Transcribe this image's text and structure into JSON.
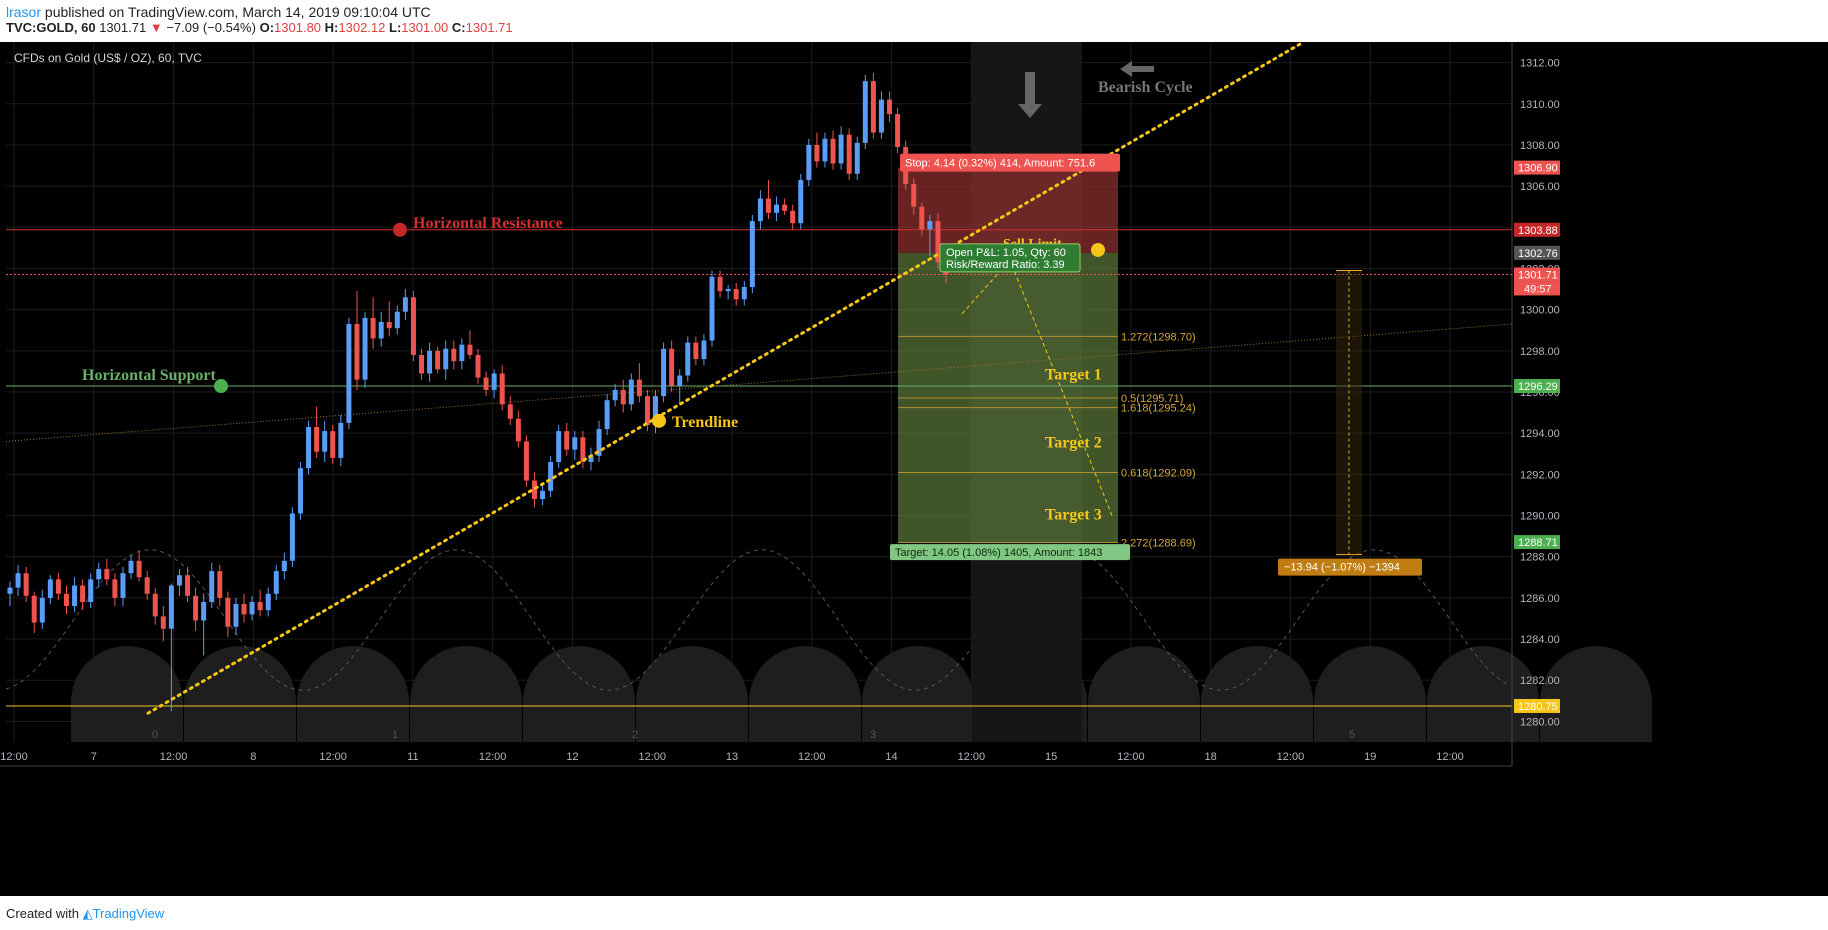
{
  "header": {
    "user": "lrasor",
    "published": " published on TradingView.com, March 14, 2019 09:10:04 UTC",
    "symbol": "TVC:GOLD, 60",
    "last": "1301.71",
    "change_arrow": "▼",
    "change": "−7.09 (−0.54%)",
    "o_label": "O:",
    "o": "1301.80",
    "h_label": "H:",
    "h": "1302.12",
    "l_label": "L:",
    "l": "1301.00",
    "c_label": "C:",
    "c": "1301.71"
  },
  "chart_title": "CFDs on Gold (US$ / OZ), 60, TVC",
  "footer": {
    "created": "Created with",
    "brand": "TradingView"
  },
  "colors": {
    "bg": "#000000",
    "up": "#5b9cf6",
    "down": "#ef5350",
    "resistance": "#d32f2f",
    "support": "#69b069",
    "trend": "#f5c518",
    "grid": "#1c1c1c",
    "axis_text": "#b2b5be"
  },
  "chart_data": {
    "type": "candlestick",
    "title": "CFDs on Gold (US$ / OZ), 60, TVC",
    "ylim": [
      1279,
      1313
    ],
    "y_ticks": [
      1280,
      1282,
      1284,
      1286,
      1288,
      1290,
      1292,
      1294,
      1296,
      1298,
      1300,
      1302,
      1304,
      1306,
      1308,
      1310,
      1312
    ],
    "x_ticks": [
      "12:00",
      "7",
      "12:00",
      "8",
      "12:00",
      "11",
      "12:00",
      "12",
      "12:00",
      "13",
      "12:00",
      "14",
      "12:00",
      "15",
      "12:00",
      "18",
      "12:00",
      "19",
      "12:00"
    ],
    "cycle_numbers": [
      "0",
      "1",
      "2",
      "3",
      "5",
      "5"
    ],
    "price_tags": [
      {
        "value": 1306.9,
        "label": "1306.90",
        "color": "#ef5350"
      },
      {
        "value": 1303.88,
        "label": "1303.88",
        "color": "#c62828"
      },
      {
        "value": 1302.76,
        "label": "1302.76",
        "color": "#555555"
      },
      {
        "value": 1301.71,
        "label": "1301.71",
        "color": "#ef5350"
      },
      {
        "value": 1296.29,
        "label": "1296.29",
        "color": "#4caf50"
      },
      {
        "value": 1288.71,
        "label": "1288.71",
        "color": "#4caf50"
      },
      {
        "value": 1280.75,
        "label": "1280.75",
        "color": "#f5c518"
      }
    ],
    "countdown": "49:57",
    "horizontal_lines": [
      {
        "value": 1303.88,
        "name": "Horizontal Resistance"
      },
      {
        "value": 1296.29,
        "name": "Horizontal Support"
      },
      {
        "value": 1280.75,
        "name": ""
      }
    ],
    "trendline_label": "Trendline",
    "fib_levels": [
      {
        "label": "1.272(1298.70)",
        "value": 1298.7
      },
      {
        "label": "0.5(1295.71)",
        "value": 1295.71
      },
      {
        "label": "1.618(1295.24)",
        "value": 1295.24
      },
      {
        "label": "0.618(1292.09)",
        "value": 1292.09
      },
      {
        "label": "2.272(1288.69)",
        "value": 1288.69
      }
    ],
    "targets": [
      "Target 1",
      "Target 2",
      "Target 3"
    ],
    "position": {
      "entry": 1302.76,
      "stop": 1306.9,
      "target": 1288.71,
      "stop_label": "Stop: 4.14 (0.32%) 414, Amount: 751.6",
      "target_label": "Target: 14.05 (1.08%) 1405, Amount: 1843",
      "pnl_label": "Open P&L: 1.05, Qty: 60",
      "rr_label": "Risk/Reward Ratio: 3.39",
      "sell_limit": "Sell Limit"
    },
    "bearish_cycle": "Bearish Cycle",
    "measure_label": "−13.94 (−1.07%) −1394",
    "candles": [
      [
        1286.2,
        1286.8,
        1285.6,
        1286.5
      ],
      [
        1286.5,
        1287.6,
        1286.1,
        1287.2
      ],
      [
        1287.2,
        1287.5,
        1285.8,
        1286.1
      ],
      [
        1286.1,
        1286.3,
        1284.3,
        1284.8
      ],
      [
        1284.8,
        1286.4,
        1284.5,
        1286.0
      ],
      [
        1286.0,
        1287.1,
        1285.7,
        1286.9
      ],
      [
        1286.9,
        1287.2,
        1285.9,
        1286.2
      ],
      [
        1286.2,
        1286.6,
        1285.2,
        1285.6
      ],
      [
        1285.6,
        1287.0,
        1285.3,
        1286.6
      ],
      [
        1286.6,
        1286.9,
        1285.4,
        1285.8
      ],
      [
        1285.8,
        1287.2,
        1285.5,
        1286.9
      ],
      [
        1286.9,
        1287.7,
        1286.5,
        1287.4
      ],
      [
        1287.4,
        1287.9,
        1286.6,
        1286.9
      ],
      [
        1286.9,
        1287.2,
        1285.6,
        1286.0
      ],
      [
        1286.0,
        1287.5,
        1285.6,
        1287.2
      ],
      [
        1287.2,
        1288.1,
        1286.9,
        1287.8
      ],
      [
        1287.8,
        1288.3,
        1286.8,
        1287.0
      ],
      [
        1287.0,
        1287.3,
        1285.9,
        1286.2
      ],
      [
        1286.2,
        1286.5,
        1284.7,
        1285.1
      ],
      [
        1285.1,
        1285.6,
        1283.9,
        1284.5
      ],
      [
        1284.5,
        1286.7,
        1280.5,
        1286.6
      ],
      [
        1286.6,
        1287.4,
        1286.1,
        1287.1
      ],
      [
        1287.1,
        1287.5,
        1285.8,
        1286.1
      ],
      [
        1286.1,
        1286.5,
        1284.4,
        1284.9
      ],
      [
        1284.9,
        1286.2,
        1283.2,
        1285.8
      ],
      [
        1285.8,
        1287.7,
        1285.5,
        1287.3
      ],
      [
        1287.3,
        1287.6,
        1285.6,
        1286.0
      ],
      [
        1286.0,
        1286.3,
        1284.1,
        1284.6
      ],
      [
        1284.6,
        1286.0,
        1284.2,
        1285.7
      ],
      [
        1285.7,
        1286.2,
        1284.8,
        1285.2
      ],
      [
        1285.2,
        1286.1,
        1284.9,
        1285.8
      ],
      [
        1285.8,
        1286.4,
        1285.1,
        1285.4
      ],
      [
        1285.4,
        1286.5,
        1285.1,
        1286.2
      ],
      [
        1286.2,
        1287.6,
        1285.9,
        1287.3
      ],
      [
        1287.3,
        1288.2,
        1286.9,
        1287.8
      ],
      [
        1287.8,
        1290.4,
        1287.5,
        1290.1
      ],
      [
        1290.1,
        1292.6,
        1289.8,
        1292.3
      ],
      [
        1292.3,
        1294.6,
        1292.0,
        1294.3
      ],
      [
        1294.3,
        1295.3,
        1292.8,
        1293.1
      ],
      [
        1293.1,
        1294.6,
        1292.6,
        1294.1
      ],
      [
        1294.1,
        1294.4,
        1292.5,
        1292.8
      ],
      [
        1292.8,
        1294.9,
        1292.4,
        1294.5
      ],
      [
        1294.5,
        1299.6,
        1294.2,
        1299.3
      ],
      [
        1299.3,
        1300.9,
        1296.1,
        1296.6
      ],
      [
        1296.6,
        1299.9,
        1296.2,
        1299.6
      ],
      [
        1299.6,
        1300.6,
        1298.1,
        1298.6
      ],
      [
        1298.6,
        1299.9,
        1298.2,
        1299.4
      ],
      [
        1299.4,
        1300.4,
        1298.7,
        1299.1
      ],
      [
        1299.1,
        1300.2,
        1298.8,
        1299.9
      ],
      [
        1299.9,
        1301.0,
        1299.5,
        1300.6
      ],
      [
        1300.6,
        1300.9,
        1297.5,
        1297.8
      ],
      [
        1297.8,
        1298.1,
        1296.6,
        1296.9
      ],
      [
        1296.9,
        1298.4,
        1296.5,
        1298.0
      ],
      [
        1298.0,
        1298.2,
        1296.9,
        1297.1
      ],
      [
        1297.1,
        1298.5,
        1296.6,
        1298.1
      ],
      [
        1298.1,
        1298.5,
        1297.1,
        1297.5
      ],
      [
        1297.5,
        1298.6,
        1297.1,
        1298.3
      ],
      [
        1298.3,
        1299.0,
        1297.6,
        1297.8
      ],
      [
        1297.8,
        1298.1,
        1296.4,
        1296.7
      ],
      [
        1296.7,
        1297.0,
        1295.8,
        1296.1
      ],
      [
        1296.1,
        1297.1,
        1295.7,
        1296.9
      ],
      [
        1296.9,
        1297.3,
        1295.1,
        1295.4
      ],
      [
        1295.4,
        1295.8,
        1294.4,
        1294.7
      ],
      [
        1294.7,
        1295.1,
        1293.3,
        1293.6
      ],
      [
        1293.6,
        1293.9,
        1291.4,
        1291.7
      ],
      [
        1291.7,
        1292.1,
        1290.4,
        1290.8
      ],
      [
        1290.8,
        1291.6,
        1290.5,
        1291.2
      ],
      [
        1291.2,
        1292.9,
        1290.9,
        1292.6
      ],
      [
        1292.6,
        1294.4,
        1292.3,
        1294.1
      ],
      [
        1294.1,
        1294.5,
        1292.9,
        1293.2
      ],
      [
        1293.2,
        1294.1,
        1292.7,
        1293.8
      ],
      [
        1293.8,
        1294.1,
        1292.3,
        1292.6
      ],
      [
        1292.6,
        1293.3,
        1292.2,
        1292.9
      ],
      [
        1292.9,
        1294.6,
        1292.6,
        1294.2
      ],
      [
        1294.2,
        1295.9,
        1293.9,
        1295.6
      ],
      [
        1295.6,
        1296.4,
        1295.3,
        1296.1
      ],
      [
        1296.1,
        1296.6,
        1295.0,
        1295.4
      ],
      [
        1295.4,
        1296.9,
        1295.1,
        1296.6
      ],
      [
        1296.6,
        1297.4,
        1295.5,
        1295.8
      ],
      [
        1295.8,
        1296.1,
        1294.1,
        1294.4
      ],
      [
        1294.4,
        1296.1,
        1294.0,
        1295.8
      ],
      [
        1295.8,
        1298.4,
        1295.5,
        1298.1
      ],
      [
        1298.1,
        1298.5,
        1296.0,
        1296.3
      ],
      [
        1296.3,
        1297.1,
        1295.4,
        1296.8
      ],
      [
        1296.8,
        1298.7,
        1296.5,
        1298.4
      ],
      [
        1298.4,
        1298.7,
        1297.3,
        1297.6
      ],
      [
        1297.6,
        1298.8,
        1297.3,
        1298.5
      ],
      [
        1298.5,
        1301.9,
        1298.2,
        1301.6
      ],
      [
        1301.6,
        1301.9,
        1300.6,
        1300.9
      ],
      [
        1300.9,
        1301.2,
        1300.5,
        1301.0
      ],
      [
        1301.0,
        1301.3,
        1300.2,
        1300.5
      ],
      [
        1300.5,
        1301.4,
        1300.2,
        1301.1
      ],
      [
        1301.1,
        1304.6,
        1300.8,
        1304.3
      ],
      [
        1304.3,
        1305.8,
        1303.9,
        1305.4
      ],
      [
        1305.4,
        1306.3,
        1304.4,
        1304.7
      ],
      [
        1304.7,
        1305.5,
        1304.3,
        1305.1
      ],
      [
        1305.1,
        1305.4,
        1304.6,
        1304.8
      ],
      [
        1304.8,
        1305.1,
        1303.9,
        1304.2
      ],
      [
        1304.2,
        1306.6,
        1303.9,
        1306.3
      ],
      [
        1306.3,
        1308.3,
        1306.0,
        1308.0
      ],
      [
        1308.0,
        1308.6,
        1306.9,
        1307.2
      ],
      [
        1307.2,
        1308.6,
        1306.9,
        1308.3
      ],
      [
        1308.3,
        1308.7,
        1306.8,
        1307.1
      ],
      [
        1307.1,
        1308.9,
        1306.8,
        1308.5
      ],
      [
        1308.5,
        1308.8,
        1306.3,
        1306.6
      ],
      [
        1306.6,
        1308.4,
        1306.3,
        1308.1
      ],
      [
        1308.1,
        1311.4,
        1307.8,
        1311.1
      ],
      [
        1311.1,
        1311.5,
        1308.3,
        1308.6
      ],
      [
        1308.6,
        1310.6,
        1308.3,
        1310.2
      ],
      [
        1310.2,
        1310.6,
        1309.1,
        1309.5
      ],
      [
        1309.5,
        1309.8,
        1307.6,
        1307.9
      ],
      [
        1307.9,
        1308.2,
        1305.8,
        1306.1
      ],
      [
        1306.1,
        1306.4,
        1304.6,
        1305.0
      ],
      [
        1305.0,
        1305.2,
        1303.6,
        1303.9
      ],
      [
        1303.9,
        1304.6,
        1302.6,
        1304.3
      ],
      [
        1304.3,
        1304.7,
        1302.0,
        1302.3
      ],
      [
        1302.3,
        1302.8,
        1301.3,
        1301.7
      ]
    ]
  }
}
